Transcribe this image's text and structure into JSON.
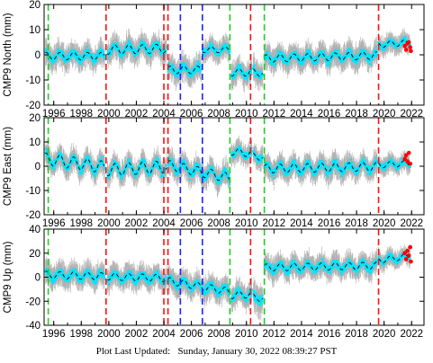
{
  "chart_data": [
    {
      "type": "scatter",
      "ylabel": "CMP9 North (mm)",
      "ylim": [
        -20,
        20
      ],
      "yticks": [
        -20,
        -10,
        0,
        10,
        20
      ],
      "xlim": [
        1995.3,
        2022.9
      ],
      "xticks": [
        1996,
        1998,
        2000,
        2002,
        2004,
        2006,
        2008,
        2010,
        2012,
        2014,
        2016,
        2018,
        2020,
        2022
      ],
      "segments": [
        {
          "start": 1995.4,
          "end": 1999.7,
          "level": -0.5,
          "trend": 0.0,
          "amp": 1.5,
          "noise": 2.0
        },
        {
          "start": 1999.9,
          "end": 2004.2,
          "level": 2.0,
          "trend": 0.1,
          "amp": 1.8,
          "noise": 2.0
        },
        {
          "start": 2004.3,
          "end": 2006.7,
          "level": -6.0,
          "trend": 0.0,
          "amp": 1.5,
          "noise": 2.0
        },
        {
          "start": 2006.8,
          "end": 2008.8,
          "level": 2.0,
          "trend": 0.0,
          "amp": 1.2,
          "noise": 1.8
        },
        {
          "start": 2008.9,
          "end": 2010.4,
          "level": -7.0,
          "trend": 0.0,
          "amp": 1.5,
          "noise": 2.0
        },
        {
          "start": 2010.5,
          "end": 2011.2,
          "level": -7.0,
          "trend": 0.0,
          "amp": 1.5,
          "noise": 2.0
        },
        {
          "start": 2011.3,
          "end": 2019.5,
          "level": -1.5,
          "trend": 0.15,
          "amp": 1.5,
          "noise": 2.0
        },
        {
          "start": 2019.6,
          "end": 2021.9,
          "level": 4.0,
          "trend": 0.4,
          "amp": 1.2,
          "noise": 1.5
        }
      ],
      "red_points": [
        [
          2021.5,
          3.5
        ],
        [
          2021.6,
          2.0
        ],
        [
          2021.7,
          4.5
        ],
        [
          2021.8,
          5.0
        ],
        [
          2021.9,
          3.0
        ],
        [
          2021.95,
          1.5
        ]
      ]
    },
    {
      "type": "scatter",
      "ylabel": "CMP9 East (mm)",
      "ylim": [
        -20,
        20
      ],
      "yticks": [
        -20,
        -10,
        0,
        10,
        20
      ],
      "xlim": [
        1995.3,
        2022.9
      ],
      "xticks": [
        1996,
        1998,
        2000,
        2002,
        2004,
        2006,
        2008,
        2010,
        2012,
        2014,
        2016,
        2018,
        2020,
        2022
      ],
      "segments": [
        {
          "start": 1995.4,
          "end": 1999.7,
          "level": 3.0,
          "trend": -0.8,
          "amp": 2.5,
          "noise": 2.0
        },
        {
          "start": 1999.9,
          "end": 2004.2,
          "level": -1.5,
          "trend": 0.3,
          "amp": 2.5,
          "noise": 2.0
        },
        {
          "start": 2004.3,
          "end": 2008.8,
          "level": 0.5,
          "trend": -1.2,
          "amp": 2.0,
          "noise": 2.0
        },
        {
          "start": 2008.9,
          "end": 2010.4,
          "level": 6.0,
          "trend": -0.5,
          "amp": 1.5,
          "noise": 1.8
        },
        {
          "start": 2010.5,
          "end": 2011.2,
          "level": 4.0,
          "trend": 0.0,
          "amp": 1.5,
          "noise": 1.8
        },
        {
          "start": 2011.3,
          "end": 2019.5,
          "level": -1.0,
          "trend": 0.1,
          "amp": 1.8,
          "noise": 2.0
        },
        {
          "start": 2019.6,
          "end": 2021.9,
          "level": 0.5,
          "trend": 0.3,
          "amp": 1.2,
          "noise": 1.5
        }
      ],
      "red_points": [
        [
          2021.5,
          3.0
        ],
        [
          2021.6,
          4.5
        ],
        [
          2021.7,
          2.0
        ],
        [
          2021.8,
          5.5
        ],
        [
          2021.9,
          1.0
        ]
      ]
    },
    {
      "type": "scatter",
      "ylabel": "CMP9 Up (mm)",
      "ylim": [
        -40,
        40
      ],
      "yticks": [
        -40,
        -20,
        0,
        20,
        40
      ],
      "xlim": [
        1995.3,
        2022.9
      ],
      "xticks": [
        1996,
        1998,
        2000,
        2002,
        2004,
        2006,
        2008,
        2010,
        2012,
        2014,
        2016,
        2018,
        2020,
        2022
      ],
      "segments": [
        {
          "start": 1995.4,
          "end": 1999.7,
          "level": 2.0,
          "trend": -0.3,
          "amp": 3.0,
          "noise": 4.0
        },
        {
          "start": 1999.9,
          "end": 2004.2,
          "level": 0.5,
          "trend": -0.3,
          "amp": 3.0,
          "noise": 4.0
        },
        {
          "start": 2004.3,
          "end": 2008.8,
          "level": -3.0,
          "trend": -2.0,
          "amp": 3.0,
          "noise": 4.0
        },
        {
          "start": 2008.9,
          "end": 2010.4,
          "level": -15.0,
          "trend": 0.5,
          "amp": 3.0,
          "noise": 4.0
        },
        {
          "start": 2010.5,
          "end": 2011.2,
          "level": -17.0,
          "trend": 0.0,
          "amp": 3.0,
          "noise": 5.0
        },
        {
          "start": 2011.3,
          "end": 2019.5,
          "level": 8.0,
          "trend": 0.2,
          "amp": 3.0,
          "noise": 4.0
        },
        {
          "start": 2019.6,
          "end": 2021.9,
          "level": 14.0,
          "trend": 1.5,
          "amp": 2.5,
          "noise": 3.0
        }
      ],
      "red_points": [
        [
          2021.5,
          20.0
        ],
        [
          2021.6,
          15.0
        ],
        [
          2021.7,
          22.0
        ],
        [
          2021.8,
          18.0
        ],
        [
          2021.9,
          25.0
        ],
        [
          2021.95,
          13.0
        ]
      ]
    }
  ],
  "vertical_lines": [
    {
      "x": 1995.6,
      "color": "#22cc22"
    },
    {
      "x": 1999.8,
      "color": "#ff1111"
    },
    {
      "x": 2004.0,
      "color": "#ff1111"
    },
    {
      "x": 2004.3,
      "color": "#ff1111"
    },
    {
      "x": 2005.2,
      "color": "#2222ff"
    },
    {
      "x": 2006.8,
      "color": "#2222ff"
    },
    {
      "x": 2008.8,
      "color": "#22cc22"
    },
    {
      "x": 2010.3,
      "color": "#ff1111"
    },
    {
      "x": 2011.3,
      "color": "#22cc22"
    },
    {
      "x": 2019.6,
      "color": "#ff1111"
    }
  ],
  "colors": {
    "data": "#00e5ff",
    "error_bars": "#b0b0b0",
    "model": "#000000",
    "highlight": "#ff0000"
  },
  "footer": {
    "label": "Plot Last Updated:",
    "value": "Sunday, January 30, 2022 08:39:27 PST"
  }
}
